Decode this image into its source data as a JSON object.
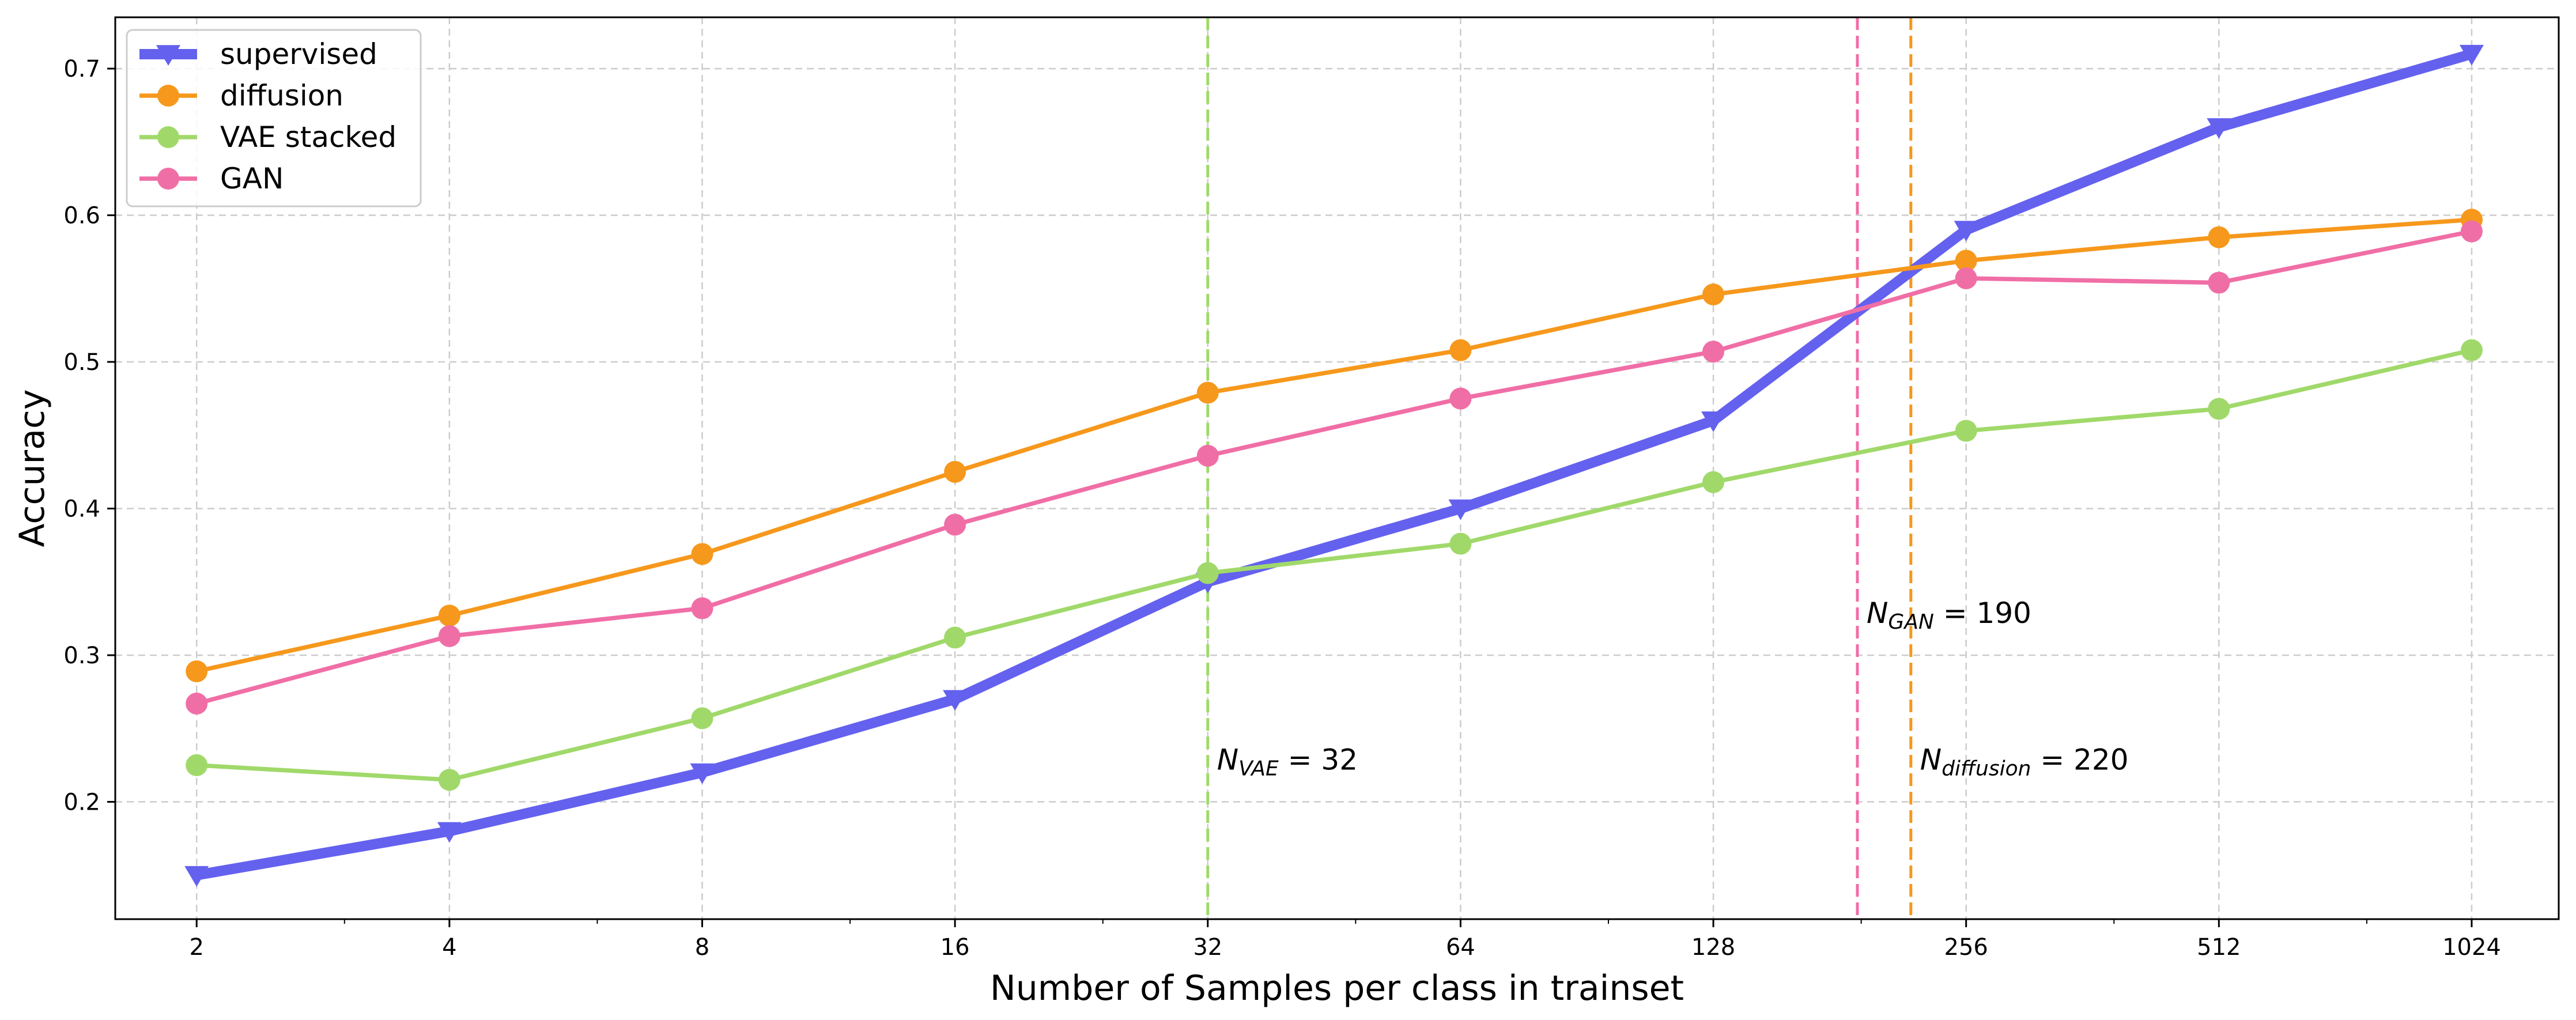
{
  "chart_data": {
    "type": "line",
    "xlabel": "Number of Samples per class in trainset",
    "ylabel": "Accuracy",
    "xscale": "log2",
    "x": [
      2,
      4,
      8,
      16,
      32,
      64,
      128,
      256,
      512,
      1024
    ],
    "xlim": [
      1.6,
      1300
    ],
    "ylim": [
      0.12,
      0.735
    ],
    "xticks": [
      2,
      4,
      8,
      16,
      32,
      64,
      128,
      256,
      512,
      1024
    ],
    "xtick_labels": [
      "2",
      "4",
      "8",
      "16",
      "32",
      "64",
      "128",
      "256",
      "512",
      "1024"
    ],
    "yticks": [
      0.2,
      0.3,
      0.4,
      0.5,
      0.6,
      0.7
    ],
    "ytick_labels": [
      "0.2",
      "0.3",
      "0.4",
      "0.5",
      "0.6",
      "0.7"
    ],
    "grid": true,
    "legend_position": "top-left",
    "series": [
      {
        "name": "supervised",
        "color": "#6461ef",
        "marker": "triangle-down",
        "line_width": "thick",
        "values": [
          0.15,
          0.18,
          0.22,
          0.27,
          0.35,
          0.4,
          0.46,
          0.59,
          0.66,
          0.71
        ]
      },
      {
        "name": "diffusion",
        "color": "#f6981c",
        "marker": "circle",
        "line_width": "normal",
        "values": [
          0.289,
          0.327,
          0.369,
          0.425,
          0.479,
          0.508,
          0.546,
          0.569,
          0.585,
          0.597
        ]
      },
      {
        "name": "VAE stacked",
        "color": "#a0d96a",
        "marker": "circle",
        "line_width": "normal",
        "values": [
          0.225,
          0.215,
          0.257,
          0.312,
          0.356,
          0.376,
          0.418,
          0.453,
          0.468,
          0.508
        ]
      },
      {
        "name": "GAN",
        "color": "#f06ea6",
        "marker": "circle",
        "line_width": "normal",
        "values": [
          0.267,
          0.313,
          0.332,
          0.389,
          0.436,
          0.475,
          0.507,
          0.557,
          0.554,
          0.589
        ]
      }
    ],
    "vlines": [
      {
        "x": 32,
        "color": "#a0d96a",
        "label_main": "N",
        "label_sub": "VAE",
        "label_rest": " = 32",
        "label_y": 0.222
      },
      {
        "x": 190,
        "color": "#f06ea6",
        "label_main": "N",
        "label_sub": "GAN",
        "label_rest": " = 190",
        "label_y": 0.322
      },
      {
        "x": 220,
        "color": "#f6981c",
        "label_main": "N",
        "label_sub": "diffusion",
        "label_rest": " = 220",
        "label_y": 0.222
      }
    ]
  }
}
